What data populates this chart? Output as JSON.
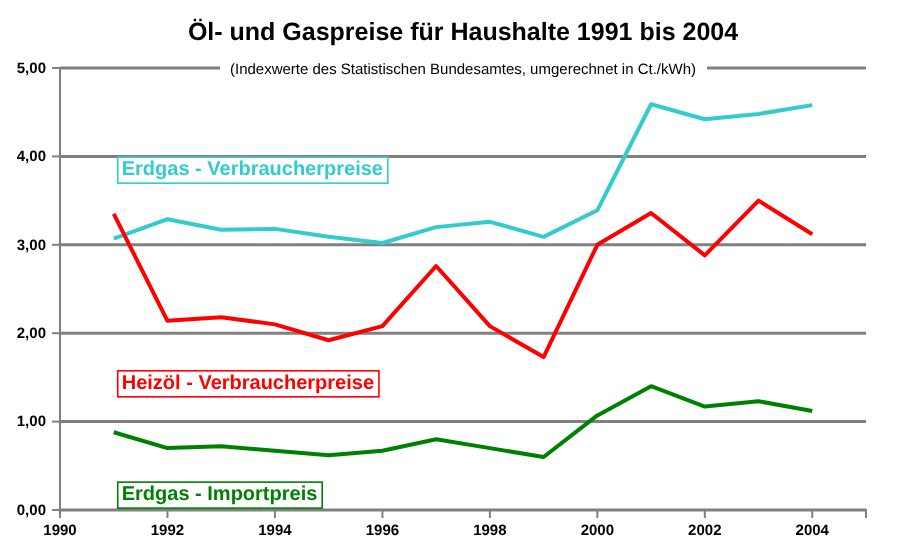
{
  "chart_data": {
    "type": "line",
    "title": "Öl- und Gaspreise für Haushalte 1991 bis 2004",
    "subtitle": "(Indexwerte des Statistischen Bundesamtes, umgerechnet in Ct./kWh)",
    "x": [
      1991,
      1992,
      1993,
      1994,
      1995,
      1996,
      1997,
      1998,
      1999,
      2000,
      2001,
      2002,
      2003,
      2004
    ],
    "series": [
      {
        "name": "Erdgas - Verbraucherpreise",
        "color": "#33cccc",
        "values": [
          3.07,
          3.29,
          3.17,
          3.18,
          3.09,
          3.02,
          3.2,
          3.26,
          3.09,
          3.39,
          4.59,
          4.42,
          4.48,
          4.58
        ]
      },
      {
        "name": "Heizöl - Verbraucherpreise",
        "color": "#ff0000",
        "values": [
          3.35,
          2.14,
          2.18,
          2.1,
          1.92,
          2.08,
          2.76,
          2.08,
          1.73,
          3.0,
          3.36,
          2.88,
          3.5,
          3.12
        ]
      },
      {
        "name": "Erdgas - Importpreis",
        "color": "#008000",
        "values": [
          0.88,
          0.7,
          0.72,
          0.67,
          0.62,
          0.67,
          0.8,
          0.7,
          0.6,
          1.07,
          1.4,
          1.17,
          1.23,
          1.12
        ]
      }
    ],
    "xlim": [
      1990,
      2005
    ],
    "xticks": [
      1990,
      1992,
      1994,
      1996,
      1998,
      2000,
      2002,
      2004
    ],
    "ylim": [
      0,
      5
    ],
    "yticks": [
      {
        "value": 0,
        "label": "0,00"
      },
      {
        "value": 1,
        "label": "1,00"
      },
      {
        "value": 2,
        "label": "2,00"
      },
      {
        "value": 3,
        "label": "3,00"
      },
      {
        "value": 4,
        "label": "4,00"
      },
      {
        "value": 5,
        "label": "5,00"
      }
    ],
    "grid": "y",
    "marker": "none",
    "line_style": "solid"
  }
}
